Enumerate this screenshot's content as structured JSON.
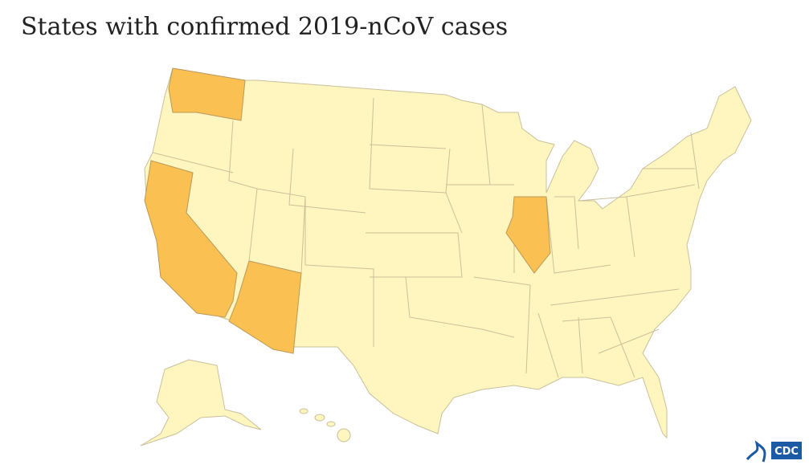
{
  "header": {
    "title": "States with confirmed 2019-nCoV cases"
  },
  "logo": {
    "text": "CDC"
  }
}
